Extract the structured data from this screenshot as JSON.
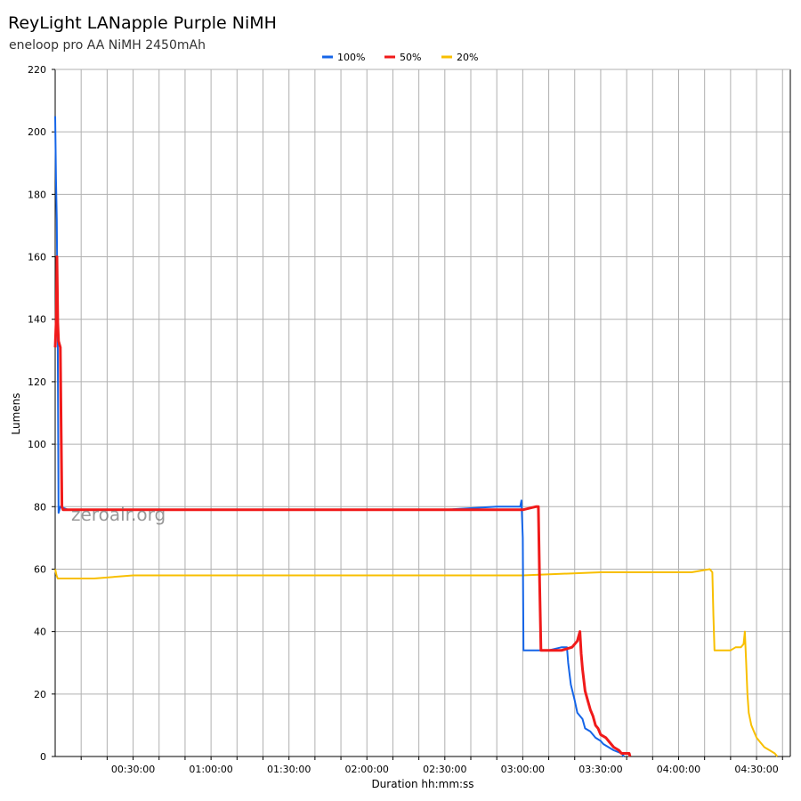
{
  "chart_data": {
    "type": "line",
    "title": "ReyLight LANapple Purple NiMH",
    "subtitle": "eneloop pro AA NiMH 2450mAh",
    "xlabel": "Duration hh:mm:ss",
    "ylabel": "Lumens",
    "watermark": "zeroair.org",
    "xlim": [
      0,
      283
    ],
    "ylim": [
      0,
      220
    ],
    "grid": true,
    "legend_position": "top-center",
    "x_unit": "minutes",
    "x_ticks": [
      {
        "value": 30,
        "label": "00:30:00"
      },
      {
        "value": 60,
        "label": "01:00:00"
      },
      {
        "value": 90,
        "label": "01:30:00"
      },
      {
        "value": 120,
        "label": "02:00:00"
      },
      {
        "value": 150,
        "label": "02:30:00"
      },
      {
        "value": 180,
        "label": "03:00:00"
      },
      {
        "value": 210,
        "label": "03:30:00"
      },
      {
        "value": 240,
        "label": "04:00:00"
      },
      {
        "value": 270,
        "label": "04:30:00"
      }
    ],
    "y_ticks": [
      0,
      20,
      40,
      60,
      80,
      100,
      120,
      140,
      160,
      180,
      200,
      220
    ],
    "series": [
      {
        "name": "100%",
        "color": "#1565e8",
        "points": [
          [
            0,
            205
          ],
          [
            0.3,
            185
          ],
          [
            0.6,
            172
          ],
          [
            1,
            132
          ],
          [
            1.3,
            78
          ],
          [
            2,
            80
          ],
          [
            5,
            79
          ],
          [
            30,
            79
          ],
          [
            60,
            79
          ],
          [
            90,
            79
          ],
          [
            120,
            79
          ],
          [
            150,
            79
          ],
          [
            170,
            80
          ],
          [
            179,
            80
          ],
          [
            179.5,
            82
          ],
          [
            180,
            70
          ],
          [
            180.3,
            34
          ],
          [
            185,
            34
          ],
          [
            190,
            34
          ],
          [
            195,
            35
          ],
          [
            197,
            35
          ],
          [
            197.5,
            30
          ],
          [
            198.5,
            23
          ],
          [
            200,
            18
          ],
          [
            201,
            14
          ],
          [
            203,
            12
          ],
          [
            204,
            9
          ],
          [
            206,
            8
          ],
          [
            207,
            7
          ],
          [
            208,
            6
          ],
          [
            210,
            5
          ],
          [
            211,
            4
          ],
          [
            213,
            3
          ],
          [
            215,
            2
          ],
          [
            218,
            1
          ],
          [
            219,
            0
          ]
        ]
      },
      {
        "name": "50%",
        "color": "#f01a1a",
        "points": [
          [
            0,
            131
          ],
          [
            0.4,
            140
          ],
          [
            0.7,
            160
          ],
          [
            1,
            139
          ],
          [
            1.3,
            133
          ],
          [
            2,
            131
          ],
          [
            2.3,
            105
          ],
          [
            2.6,
            80
          ],
          [
            3,
            79
          ],
          [
            30,
            79
          ],
          [
            60,
            79
          ],
          [
            90,
            79
          ],
          [
            120,
            79
          ],
          [
            150,
            79
          ],
          [
            180,
            79
          ],
          [
            185,
            80
          ],
          [
            186,
            80
          ],
          [
            186.5,
            56
          ],
          [
            187,
            34
          ],
          [
            195,
            34
          ],
          [
            199,
            35
          ],
          [
            201,
            37
          ],
          [
            202,
            40
          ],
          [
            202.5,
            33
          ],
          [
            203,
            28
          ],
          [
            204,
            21
          ],
          [
            205,
            18
          ],
          [
            206,
            15
          ],
          [
            207,
            13
          ],
          [
            208,
            10
          ],
          [
            209,
            9
          ],
          [
            210,
            7
          ],
          [
            212,
            6
          ],
          [
            213,
            5
          ],
          [
            215,
            3
          ],
          [
            217,
            2
          ],
          [
            218,
            1
          ],
          [
            221,
            1
          ],
          [
            221.3,
            0
          ]
        ]
      },
      {
        "name": "20%",
        "color": "#f8bf00",
        "points": [
          [
            0,
            60
          ],
          [
            0.5,
            58
          ],
          [
            1,
            57
          ],
          [
            15,
            57
          ],
          [
            30,
            58
          ],
          [
            60,
            58
          ],
          [
            90,
            58
          ],
          [
            120,
            58
          ],
          [
            150,
            58
          ],
          [
            180,
            58
          ],
          [
            210,
            59
          ],
          [
            240,
            59
          ],
          [
            245,
            59
          ],
          [
            252,
            60
          ],
          [
            253,
            59
          ],
          [
            253.4,
            45
          ],
          [
            253.8,
            34
          ],
          [
            260,
            34
          ],
          [
            262,
            35
          ],
          [
            264,
            35
          ],
          [
            265,
            36
          ],
          [
            265.5,
            40
          ],
          [
            266,
            30
          ],
          [
            266.5,
            20
          ],
          [
            267,
            14
          ],
          [
            268,
            10
          ],
          [
            269,
            8
          ],
          [
            270,
            6
          ],
          [
            271,
            5
          ],
          [
            272,
            4
          ],
          [
            273,
            3
          ],
          [
            275,
            2
          ],
          [
            277,
            1
          ],
          [
            278,
            0
          ]
        ]
      }
    ]
  }
}
